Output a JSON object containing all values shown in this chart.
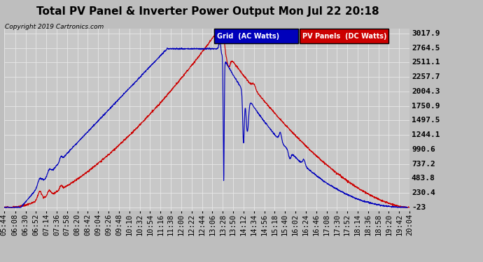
{
  "title": "Total PV Panel & Inverter Power Output Mon Jul 22 20:18",
  "copyright": "Copyright 2019 Cartronics.com",
  "legend_blue_label": "Grid  (AC Watts)",
  "legend_red_label": "PV Panels  (DC Watts)",
  "ymin": -23.0,
  "ymax": 3017.9,
  "yticks": [
    3017.9,
    2764.5,
    2511.1,
    2257.7,
    2004.3,
    1750.9,
    1497.5,
    1244.1,
    990.6,
    737.2,
    483.8,
    230.4,
    -23.0
  ],
  "bg_color": "#bebebe",
  "plot_bg_color": "#c8c8c8",
  "grid_color": "#e8e8e8",
  "blue_color": "#0000bb",
  "red_color": "#cc0000",
  "title_fontsize": 11,
  "tick_label_fontsize": 7.5,
  "x_time_labels": [
    "05:44",
    "06:08",
    "06:30",
    "06:52",
    "07:14",
    "07:36",
    "07:58",
    "08:20",
    "08:42",
    "09:04",
    "09:26",
    "09:48",
    "10:10",
    "10:32",
    "10:54",
    "11:16",
    "11:38",
    "12:00",
    "12:22",
    "12:44",
    "13:06",
    "13:28",
    "13:50",
    "14:12",
    "14:34",
    "14:56",
    "15:18",
    "15:40",
    "16:02",
    "16:24",
    "16:46",
    "17:08",
    "17:30",
    "17:52",
    "18:14",
    "18:36",
    "18:58",
    "19:20",
    "19:42",
    "20:04"
  ]
}
